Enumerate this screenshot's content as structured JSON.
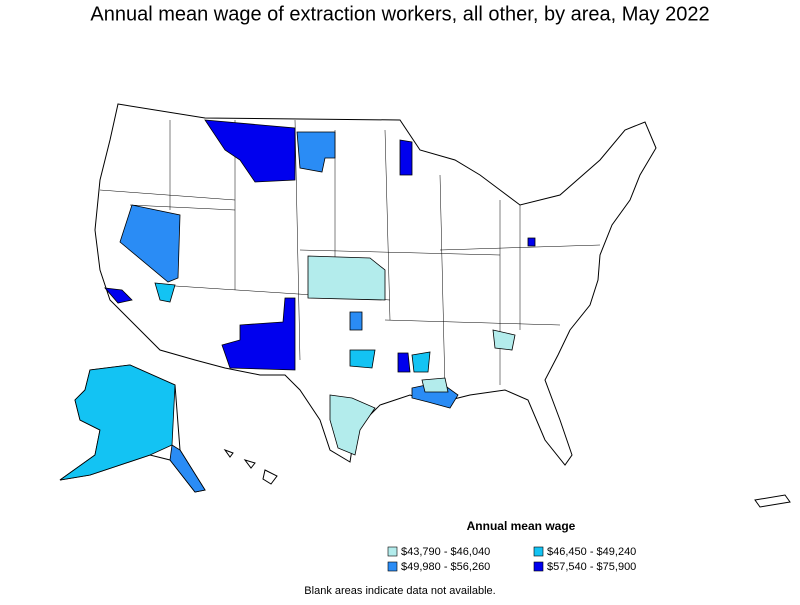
{
  "title": "Annual mean wage of extraction workers, all other, by area, May 2022",
  "legend": {
    "title": "Annual mean wage",
    "items": [
      {
        "label": "$43,790 - $46,040",
        "color": "#b3ecec"
      },
      {
        "label": "$46,450 - $49,240",
        "color": "#13c3f3"
      },
      {
        "label": "$49,980 - $56,260",
        "color": "#2a8cf5"
      },
      {
        "label": "$57,540 - $75,900",
        "color": "#0000ee"
      }
    ]
  },
  "note": "Blank areas indicate data not available."
}
